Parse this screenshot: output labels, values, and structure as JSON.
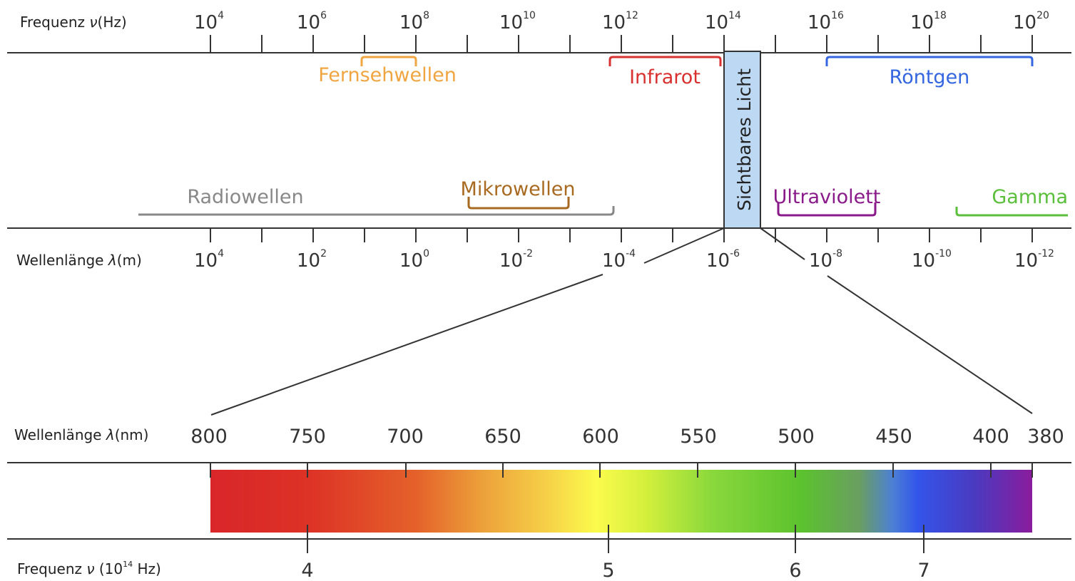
{
  "axes": {
    "freq_title": {
      "prefix": "Frequenz ",
      "symbol": "ν",
      "unit": "(Hz)"
    },
    "wave_title": {
      "prefix": "Wellenlänge ",
      "symbol": "λ",
      "unit": "(m)"
    },
    "nm_title": {
      "prefix": "Wellenlänge ",
      "symbol": "λ",
      "unit": "(nm)"
    },
    "freq2_title": {
      "prefix": "Frequenz ",
      "symbol": "ν",
      "mid": " (10",
      "sup": "14",
      "unit": " Hz)"
    }
  },
  "freq_ticks": [
    {
      "base": "10",
      "exp": "4"
    },
    {
      "base": "10",
      "exp": "6"
    },
    {
      "base": "10",
      "exp": "8"
    },
    {
      "base": "10",
      "exp": "10"
    },
    {
      "base": "10",
      "exp": "12"
    },
    {
      "base": "10",
      "exp": "14"
    },
    {
      "base": "10",
      "exp": "16"
    },
    {
      "base": "10",
      "exp": "18"
    },
    {
      "base": "10",
      "exp": "20"
    }
  ],
  "wave_ticks": [
    {
      "base": "10",
      "exp": "4"
    },
    {
      "base": "10",
      "exp": "2"
    },
    {
      "base": "10",
      "exp": "0"
    },
    {
      "base": "10",
      "exp": "-2"
    },
    {
      "base": "10",
      "exp": "-4"
    },
    {
      "base": "10",
      "exp": "-6"
    },
    {
      "base": "10",
      "exp": "-8"
    },
    {
      "base": "10",
      "exp": "-10"
    },
    {
      "base": "10",
      "exp": "-12"
    }
  ],
  "bands": [
    {
      "key": "fernsehwellen",
      "label": "Fernsehwellen",
      "color": "#f0a540"
    },
    {
      "key": "infrarot",
      "label": "Infrarot",
      "color": "#d93030"
    },
    {
      "key": "roentgen",
      "label": "Röntgen",
      "color": "#3366e0"
    },
    {
      "key": "radiowellen",
      "label": "Radiowellen",
      "color": "#888888"
    },
    {
      "key": "mikrowellen",
      "label": "Mikrowellen",
      "color": "#a86a20"
    },
    {
      "key": "ultraviolett",
      "label": "Ultraviolett",
      "color": "#8a1a8a"
    },
    {
      "key": "gamma",
      "label": "Gamma",
      "color": "#5abf3a"
    }
  ],
  "visible": {
    "label": "Sichtbares Licht",
    "color": "#bcd8f3"
  },
  "nm_ticks": [
    "800",
    "750",
    "700",
    "650",
    "600",
    "550",
    "500",
    "450",
    "400",
    "380"
  ],
  "freq2_ticks": [
    "4",
    "5",
    "6",
    "7"
  ]
}
